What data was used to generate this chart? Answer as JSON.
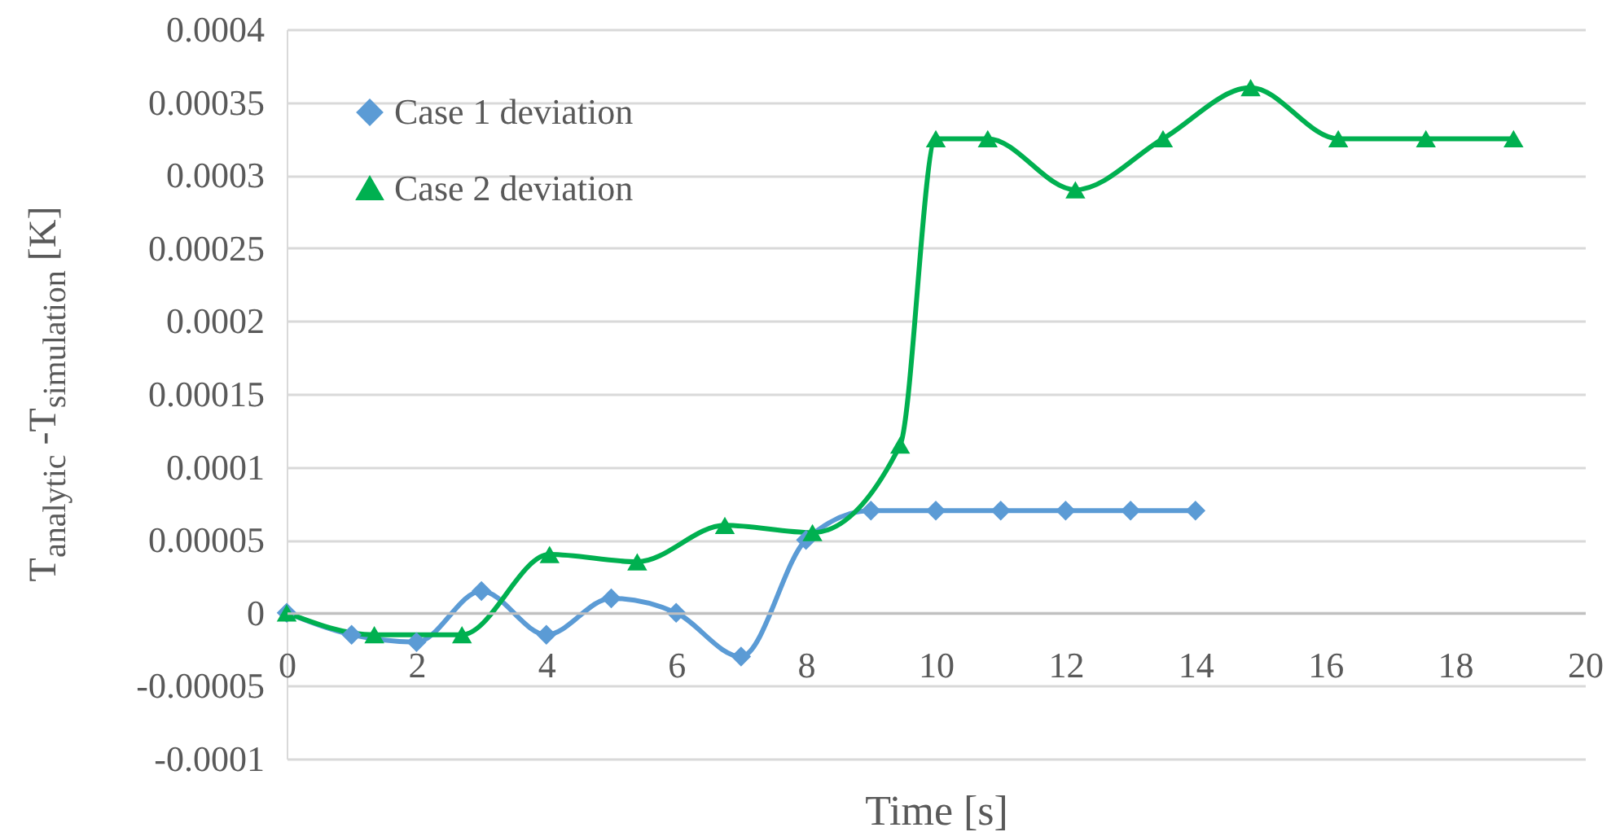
{
  "chart_data": {
    "type": "line",
    "xlabel": "Time [s]",
    "ylabel": "T$_{analytic}$ -T$_{simulation}$ [K]",
    "xlim": [
      0,
      20
    ],
    "xticks": [
      0,
      2,
      4,
      6,
      8,
      10,
      12,
      14,
      16,
      18,
      20
    ],
    "ylim": [
      -0.0001,
      0.0004
    ],
    "yticks": [
      -0.0001,
      {
        "value": -5e-05,
        "label": "-0.00005"
      },
      0,
      {
        "value": 5e-05,
        "label": "0.00005"
      },
      0.0001,
      0.00015,
      0.0002,
      0.00025,
      0.0003,
      0.00035,
      0.0004
    ],
    "grid": "y",
    "legend": "top left",
    "line_style": "solid",
    "series": [
      {
        "name": "Case 1 deviation",
        "color": "#5b9bd5",
        "marker": "diamond",
        "x": [
          0,
          1,
          2,
          3,
          4,
          5,
          6,
          7,
          8,
          9,
          10,
          11,
          12,
          13,
          14
        ],
        "values": [
          0,
          -1.5e-05,
          -2e-05,
          1.5e-05,
          -1.5e-05,
          1e-05,
          0,
          -3e-05,
          5e-05,
          7e-05,
          7e-05,
          7e-05,
          7e-05,
          7e-05,
          7e-05
        ]
      },
      {
        "name": "Case 2 deviation",
        "color": "#00b050",
        "marker": "triangle",
        "x": [
          0,
          1.35,
          2.7,
          4.05,
          5.4,
          6.75,
          8.1,
          9.45,
          10,
          10.8,
          12.15,
          13.5,
          14.85,
          16.2,
          17.55,
          18.9
        ],
        "values": [
          0,
          -1.5e-05,
          -1.5e-05,
          4e-05,
          3.5e-05,
          6e-05,
          5.5e-05,
          0.000115,
          0.000325,
          0.000325,
          0.00029,
          0.000325,
          0.00036,
          0.000325,
          0.000325,
          0.000325
        ]
      }
    ]
  }
}
